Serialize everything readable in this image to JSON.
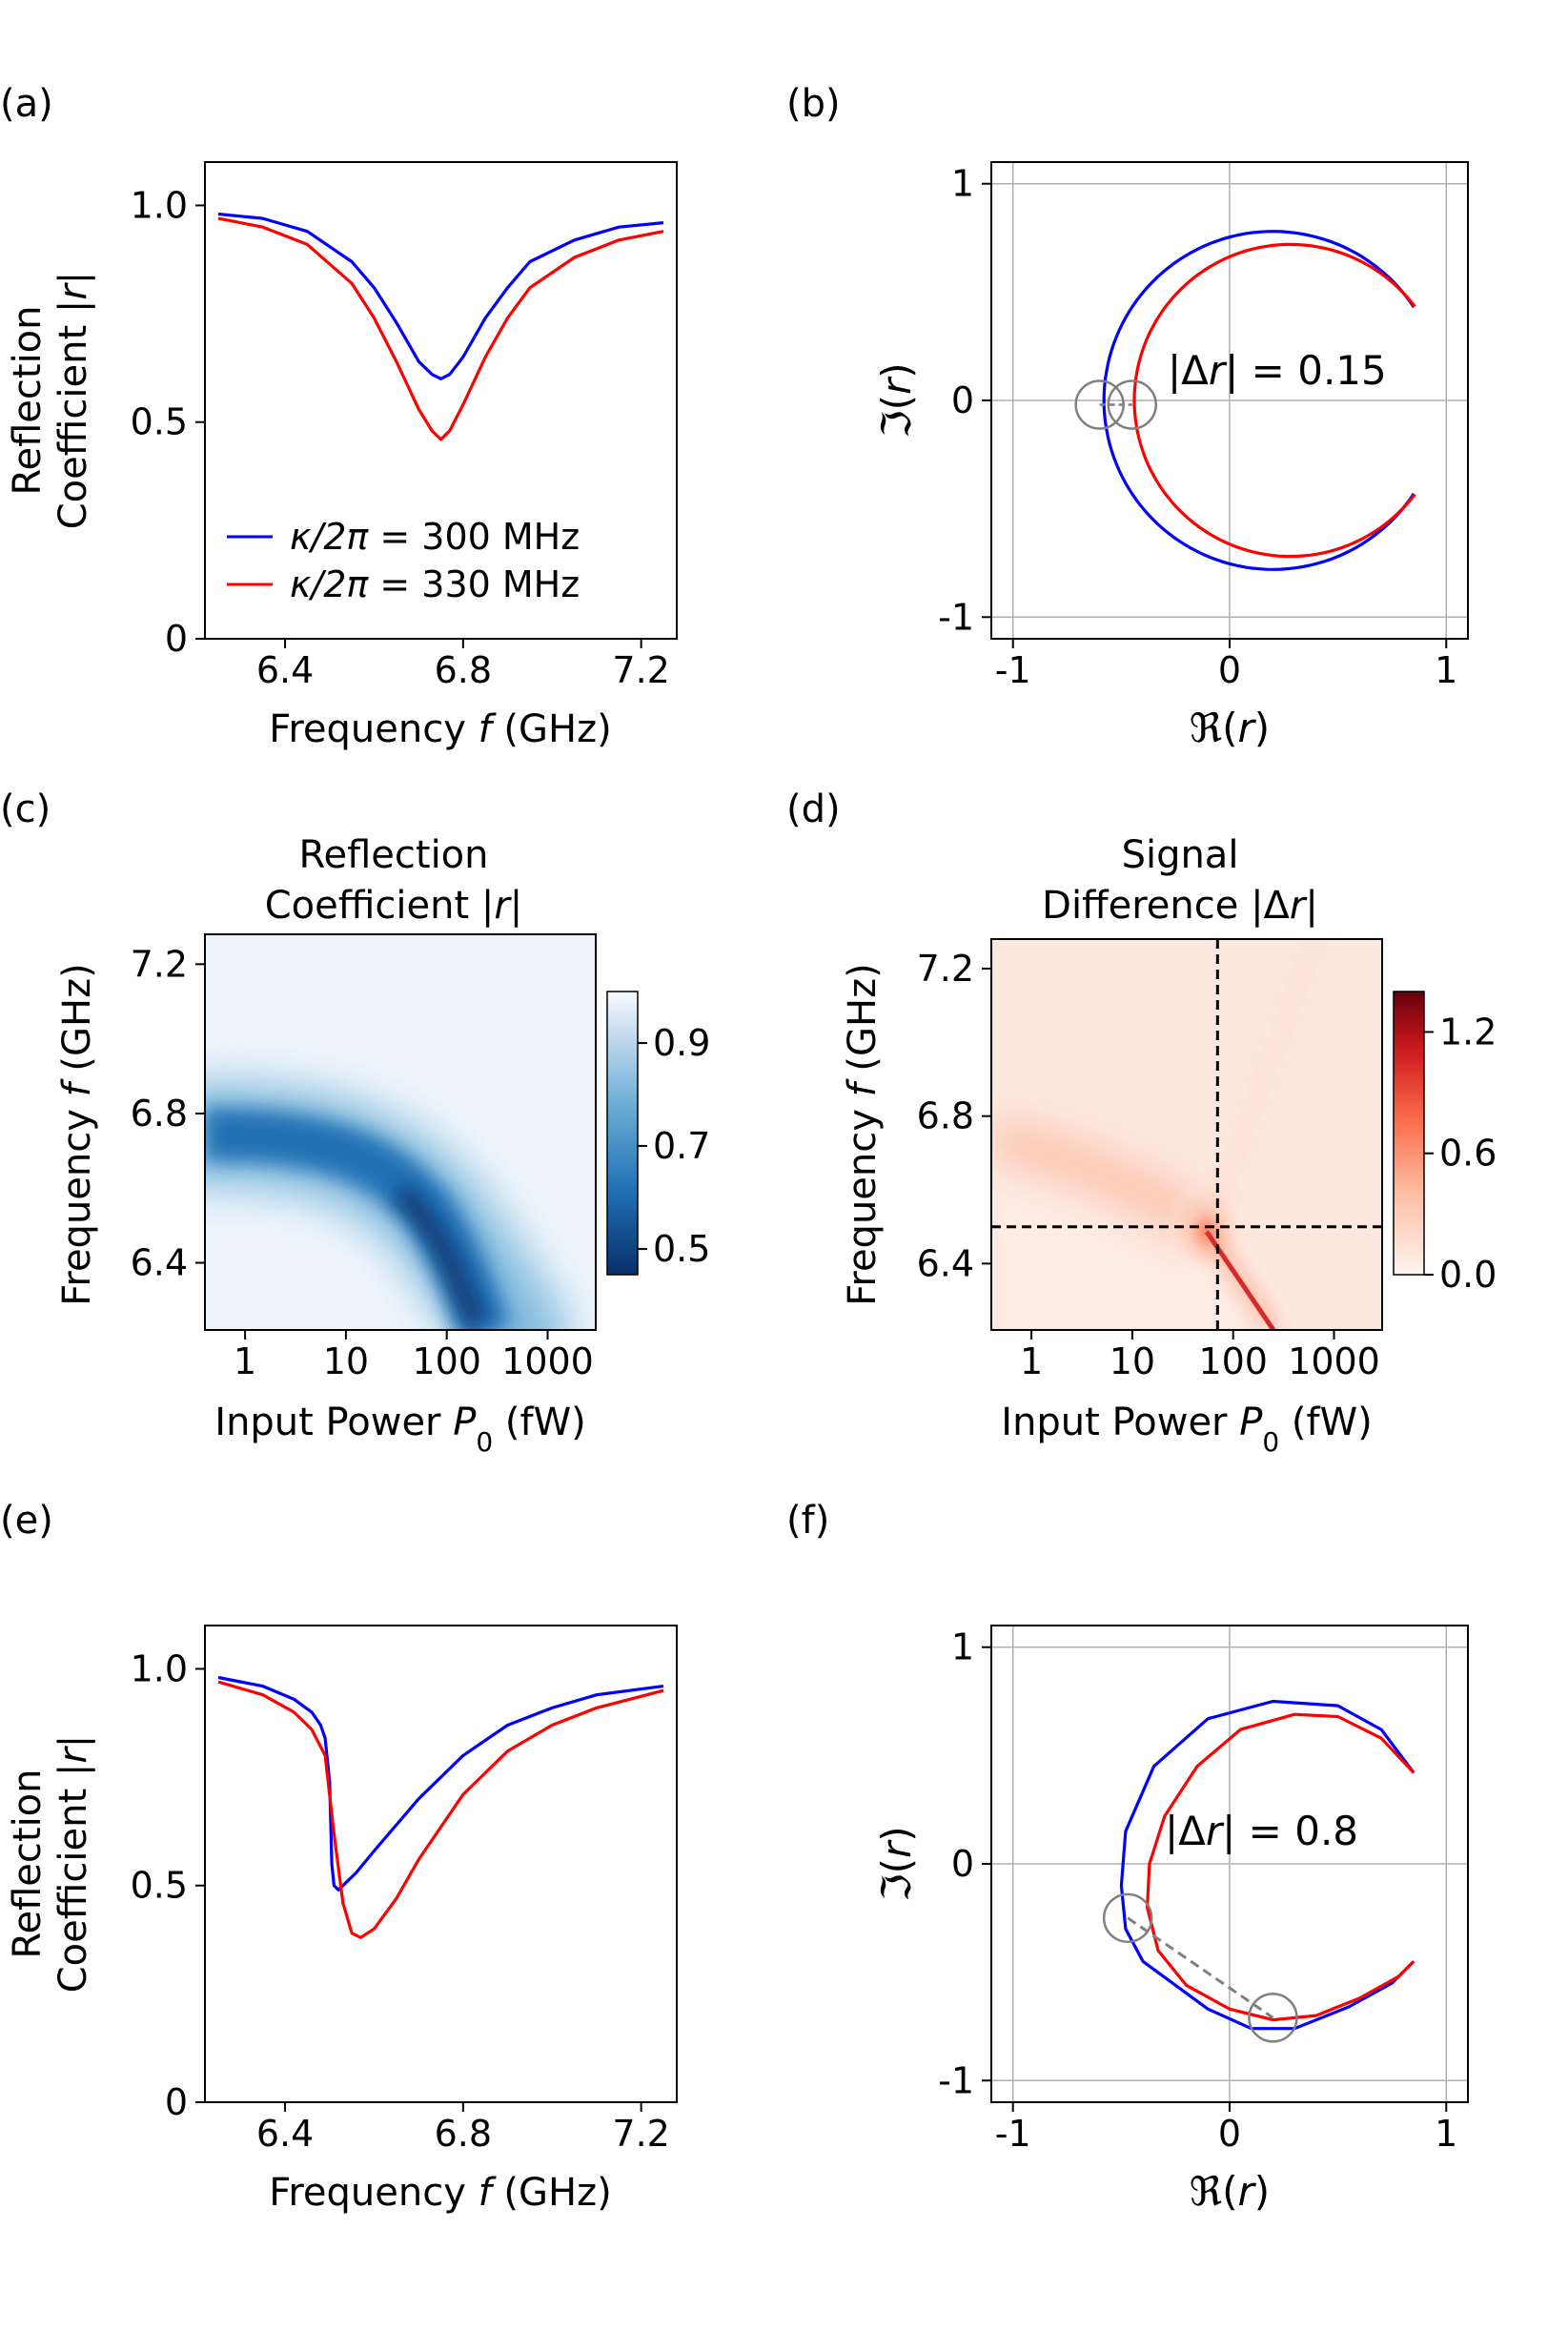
{
  "colors": {
    "blue": "#0000ff",
    "red": "#ff0000",
    "grid": "#b0b0b0",
    "marker": "#808080"
  },
  "panels": {
    "a": {
      "label": "(a)",
      "chart_data": {
        "type": "line",
        "xlabel_main": "Frequency ",
        "xlabel_sym": "f",
        "xlabel_unit": " (GHz)",
        "ylabel_line1": "Reflection",
        "ylabel_line2_pre": "Coefficient |",
        "ylabel_line2_sym": "r",
        "ylabel_line2_post": "|",
        "xlim": [
          6.22,
          7.28
        ],
        "ylim": [
          0,
          1.1
        ],
        "xticks": [
          6.4,
          6.8,
          7.2
        ],
        "xtick_labels": [
          "6.4",
          "6.8",
          "7.2"
        ],
        "yticks": [
          0,
          0.5,
          1.0
        ],
        "ytick_labels": [
          "0",
          "0.5",
          "1.0"
        ],
        "legend": [
          {
            "pre": "κ/2π = ",
            "value": "300 MHz",
            "color": "#0000ff"
          },
          {
            "pre": "κ/2π = ",
            "value": "330 MHz",
            "color": "#ff0000"
          }
        ],
        "legend_position": "lower-left",
        "series": [
          {
            "name": "κ/2π = 300 MHz",
            "color": "#0000ff",
            "x": [
              6.25,
              6.35,
              6.45,
              6.55,
              6.6,
              6.65,
              6.7,
              6.73,
              6.75,
              6.77,
              6.8,
              6.85,
              6.9,
              6.95,
              7.05,
              7.15,
              7.25
            ],
            "y": [
              0.98,
              0.97,
              0.94,
              0.87,
              0.81,
              0.73,
              0.64,
              0.61,
              0.6,
              0.61,
              0.65,
              0.74,
              0.81,
              0.87,
              0.92,
              0.95,
              0.96
            ]
          },
          {
            "name": "κ/2π = 330 MHz",
            "color": "#ff0000",
            "x": [
              6.25,
              6.35,
              6.45,
              6.55,
              6.6,
              6.65,
              6.7,
              6.73,
              6.75,
              6.77,
              6.8,
              6.85,
              6.9,
              6.95,
              7.05,
              7.15,
              7.25
            ],
            "y": [
              0.97,
              0.95,
              0.91,
              0.82,
              0.74,
              0.64,
              0.53,
              0.48,
              0.46,
              0.48,
              0.54,
              0.65,
              0.74,
              0.81,
              0.88,
              0.92,
              0.94
            ]
          }
        ]
      }
    },
    "b": {
      "label": "(b)",
      "chart_data": {
        "type": "line",
        "xlabel_sym": "ℜ",
        "xlabel_paren_open": "(",
        "xlabel_var": "r",
        "xlabel_paren_close": ")",
        "ylabel_sym": "ℑ",
        "ylabel_paren_open": "(",
        "ylabel_var": "r",
        "ylabel_paren_close": ")",
        "xlim": [
          -1.1,
          1.1
        ],
        "ylim": [
          -1.1,
          1.1
        ],
        "xticks": [
          -1,
          0,
          1
        ],
        "xtick_labels": [
          "-1",
          "0",
          "1"
        ],
        "yticks": [
          -1,
          0,
          1
        ],
        "ytick_labels": [
          "-1",
          "0",
          "1"
        ],
        "grid": true,
        "annotation": {
          "pre": "|Δ",
          "var": "r",
          "post": "| = ",
          "value": "0.15"
        },
        "series": [
          {
            "name": "κ/2π = 300 MHz",
            "color": "#0000ff",
            "center": [
              0.2,
              0.0
            ],
            "radius": 0.78,
            "start_point": [
              0.85,
              0.43
            ],
            "end_point": [
              0.85,
              -0.43
            ]
          },
          {
            "name": "κ/2π = 330 MHz",
            "color": "#ff0000",
            "center": [
              0.28,
              0.0
            ],
            "radius": 0.72,
            "start_point": [
              0.85,
              0.43
            ],
            "end_point": [
              0.85,
              -0.43
            ]
          }
        ],
        "markers": [
          {
            "x": -0.6,
            "y": -0.02,
            "r": 0.11
          },
          {
            "x": -0.45,
            "y": -0.02,
            "r": 0.11
          }
        ]
      }
    },
    "c": {
      "label": "(c)",
      "chart_data": {
        "type": "heatmap",
        "title_line1": "Reflection",
        "title_line2_pre": "Coefficient |",
        "title_line2_sym": "r",
        "title_line2_post": "|",
        "xlabel_main": "Input Power ",
        "xlabel_sym": "P",
        "xlabel_sub": "0",
        "xlabel_unit": " (fW)",
        "ylabel_main": "Frequency ",
        "ylabel_sym": "f",
        "ylabel_unit": " (GHz)",
        "x_scale": "log",
        "xlim": [
          0.4,
          3000
        ],
        "ylim": [
          6.22,
          7.28
        ],
        "xticks": [
          1,
          10,
          100,
          1000
        ],
        "xtick_labels": [
          "1",
          "10",
          "100",
          "1000"
        ],
        "yticks": [
          6.4,
          6.8,
          7.2
        ],
        "ytick_labels": [
          "6.4",
          "6.8",
          "7.2"
        ],
        "colorbar": {
          "min": 0.45,
          "max": 1.0,
          "ticks": [
            0.5,
            0.7,
            0.9
          ],
          "tick_labels": [
            "0.5",
            "0.7",
            "0.9"
          ],
          "colormap": "Blues_r"
        }
      }
    },
    "d": {
      "label": "(d)",
      "chart_data": {
        "type": "heatmap",
        "title_line1": "Signal",
        "title_line2_pre": "Difference |Δ",
        "title_line2_sym": "r",
        "title_line2_post": "|",
        "xlabel_main": "Input Power ",
        "xlabel_sym": "P",
        "xlabel_sub": "0",
        "xlabel_unit": " (fW)",
        "ylabel_main": "Frequency ",
        "ylabel_sym": "f",
        "ylabel_unit": " (GHz)",
        "x_scale": "log",
        "xlim": [
          0.4,
          3000
        ],
        "ylim": [
          6.22,
          7.28
        ],
        "xticks": [
          1,
          10,
          100,
          1000
        ],
        "xtick_labels": [
          "1",
          "10",
          "100",
          "1000"
        ],
        "yticks": [
          6.4,
          6.8,
          7.2
        ],
        "ytick_labels": [
          "6.4",
          "6.8",
          "7.2"
        ],
        "crosshair": {
          "x": 70,
          "y": 6.5
        },
        "colorbar": {
          "min": 0.0,
          "max": 1.4,
          "ticks": [
            0.0,
            0.6,
            1.2
          ],
          "tick_labels": [
            "0.0",
            "0.6",
            "1.2"
          ],
          "colormap": "Reds"
        }
      }
    },
    "e": {
      "label": "(e)",
      "chart_data": {
        "type": "line",
        "xlabel_main": "Frequency ",
        "xlabel_sym": "f",
        "xlabel_unit": " (GHz)",
        "ylabel_line1": "Reflection",
        "ylabel_line2_pre": "Coefficient |",
        "ylabel_line2_sym": "r",
        "ylabel_line2_post": "|",
        "xlim": [
          6.22,
          7.28
        ],
        "ylim": [
          0,
          1.1
        ],
        "xticks": [
          6.4,
          6.8,
          7.2
        ],
        "xtick_labels": [
          "6.4",
          "6.8",
          "7.2"
        ],
        "yticks": [
          0,
          0.5,
          1.0
        ],
        "ytick_labels": [
          "0",
          "0.5",
          "1.0"
        ],
        "series": [
          {
            "name": "κ/2π = 300 MHz",
            "color": "#0000ff",
            "x": [
              6.25,
              6.35,
              6.42,
              6.46,
              6.48,
              6.49,
              6.5,
              6.505,
              6.51,
              6.52,
              6.53,
              6.56,
              6.6,
              6.7,
              6.8,
              6.9,
              7.0,
              7.1,
              7.25
            ],
            "y": [
              0.98,
              0.96,
              0.93,
              0.9,
              0.87,
              0.84,
              0.74,
              0.55,
              0.5,
              0.49,
              0.5,
              0.53,
              0.58,
              0.7,
              0.8,
              0.87,
              0.91,
              0.94,
              0.96
            ]
          },
          {
            "name": "κ/2π = 330 MHz",
            "color": "#ff0000",
            "x": [
              6.25,
              6.35,
              6.42,
              6.46,
              6.49,
              6.51,
              6.53,
              6.55,
              6.57,
              6.6,
              6.65,
              6.7,
              6.8,
              6.9,
              7.0,
              7.1,
              7.25
            ],
            "y": [
              0.97,
              0.94,
              0.9,
              0.86,
              0.8,
              0.62,
              0.46,
              0.39,
              0.38,
              0.4,
              0.47,
              0.56,
              0.71,
              0.81,
              0.87,
              0.91,
              0.95
            ]
          }
        ]
      }
    },
    "f": {
      "label": "(f)",
      "chart_data": {
        "type": "line",
        "xlabel_sym": "ℜ",
        "xlabel_paren_open": "(",
        "xlabel_var": "r",
        "xlabel_paren_close": ")",
        "ylabel_sym": "ℑ",
        "ylabel_paren_open": "(",
        "ylabel_var": "r",
        "ylabel_paren_close": ")",
        "xlim": [
          -1.1,
          1.1
        ],
        "ylim": [
          -1.1,
          1.1
        ],
        "xticks": [
          -1,
          0,
          1
        ],
        "xtick_labels": [
          "-1",
          "0",
          "1"
        ],
        "yticks": [
          -1,
          0,
          1
        ],
        "ytick_labels": [
          "-1",
          "0",
          "1"
        ],
        "grid": true,
        "annotation": {
          "pre": "|Δ",
          "var": "r",
          "post": "| = ",
          "value": "0.8"
        },
        "series": [
          {
            "name": "κ/2π = 300 MHz",
            "color": "#0000ff",
            "x": [
              0.85,
              0.7,
              0.5,
              0.2,
              -0.1,
              -0.35,
              -0.48,
              -0.5,
              -0.48,
              -0.4,
              -0.25,
              -0.1,
              0.1,
              0.3,
              0.55,
              0.75,
              0.85
            ],
            "y": [
              0.42,
              0.62,
              0.73,
              0.75,
              0.67,
              0.45,
              0.15,
              -0.1,
              -0.3,
              -0.45,
              -0.56,
              -0.67,
              -0.76,
              -0.76,
              -0.66,
              -0.55,
              -0.45
            ]
          },
          {
            "name": "κ/2π = 330 MHz",
            "color": "#ff0000",
            "x": [
              0.85,
              0.7,
              0.5,
              0.3,
              0.05,
              -0.15,
              -0.3,
              -0.37,
              -0.38,
              -0.33,
              -0.2,
              0.0,
              0.2,
              0.4,
              0.6,
              0.78,
              0.85
            ],
            "y": [
              0.42,
              0.58,
              0.68,
              0.69,
              0.62,
              0.45,
              0.22,
              0.0,
              -0.2,
              -0.4,
              -0.56,
              -0.67,
              -0.72,
              -0.7,
              -0.62,
              -0.52,
              -0.45
            ]
          }
        ],
        "markers": [
          {
            "x": -0.47,
            "y": -0.25,
            "r": 0.11
          },
          {
            "x": 0.2,
            "y": -0.71,
            "r": 0.11
          }
        ],
        "connector": [
          [
            -0.47,
            -0.25
          ],
          [
            0.2,
            -0.71
          ]
        ]
      }
    }
  }
}
